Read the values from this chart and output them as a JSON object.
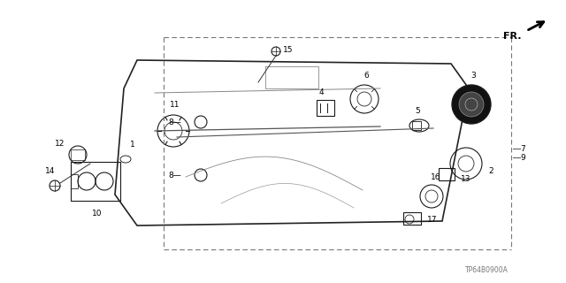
{
  "bg_color": "#ffffff",
  "fig_code": "TP64B0900A",
  "part_color": "#1a1a1a",
  "line_color": "#333333"
}
